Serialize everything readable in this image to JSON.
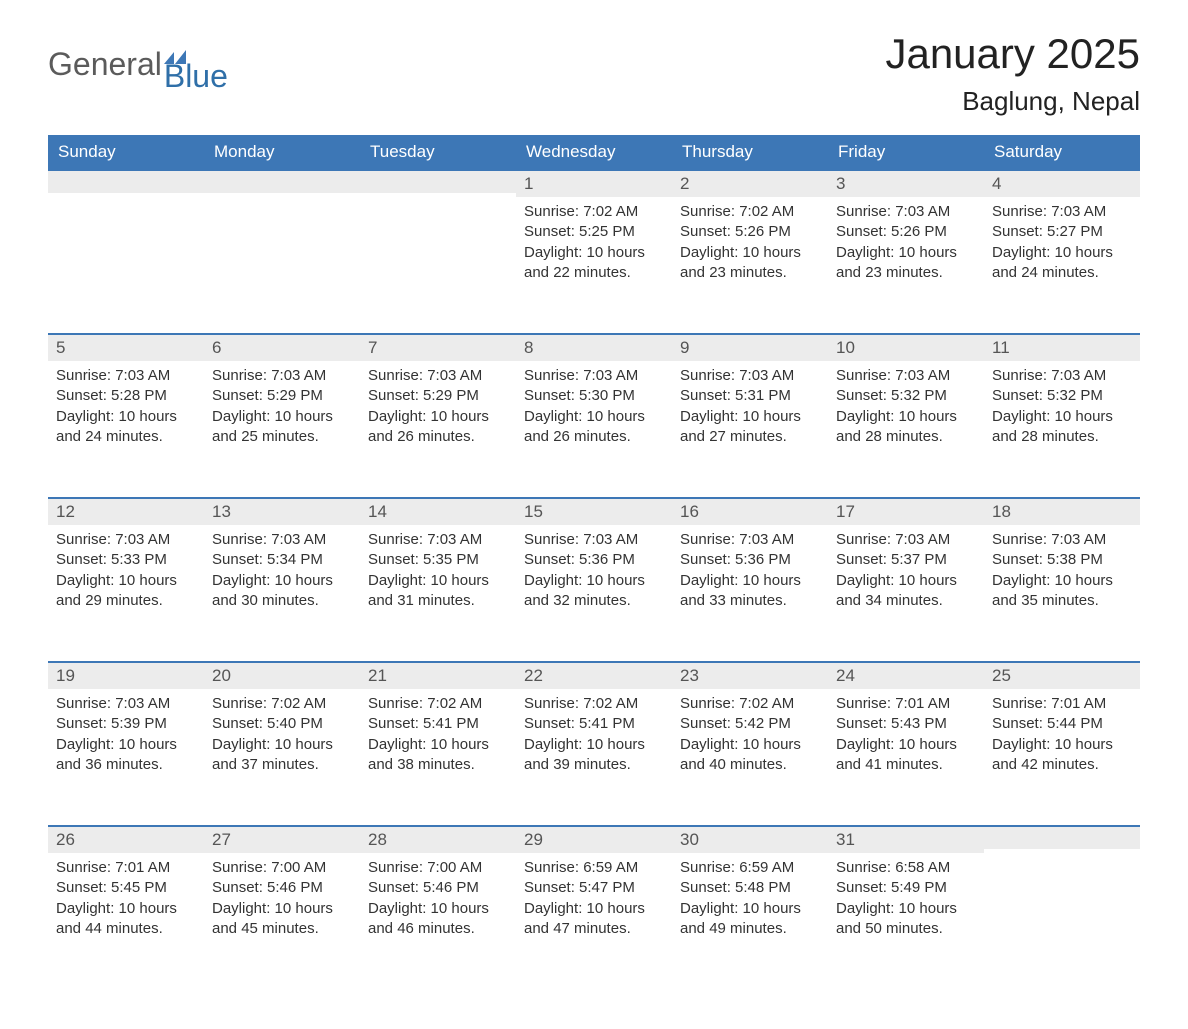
{
  "logo": {
    "general": "General",
    "blue": "Blue",
    "flag_color": "#3d77b6"
  },
  "title": "January 2025",
  "location": "Baglung, Nepal",
  "header_bg": "#3d77b6",
  "header_fg": "#ffffff",
  "daynum_bg": "#ececec",
  "daynum_border": "#3d77b6",
  "text_color": "#333333",
  "weekdays": [
    "Sunday",
    "Monday",
    "Tuesday",
    "Wednesday",
    "Thursday",
    "Friday",
    "Saturday"
  ],
  "weeks": [
    [
      null,
      null,
      null,
      {
        "n": "1",
        "sr": "7:02 AM",
        "ss": "5:25 PM",
        "dh": "10",
        "dm": "22"
      },
      {
        "n": "2",
        "sr": "7:02 AM",
        "ss": "5:26 PM",
        "dh": "10",
        "dm": "23"
      },
      {
        "n": "3",
        "sr": "7:03 AM",
        "ss": "5:26 PM",
        "dh": "10",
        "dm": "23"
      },
      {
        "n": "4",
        "sr": "7:03 AM",
        "ss": "5:27 PM",
        "dh": "10",
        "dm": "24"
      }
    ],
    [
      {
        "n": "5",
        "sr": "7:03 AM",
        "ss": "5:28 PM",
        "dh": "10",
        "dm": "24"
      },
      {
        "n": "6",
        "sr": "7:03 AM",
        "ss": "5:29 PM",
        "dh": "10",
        "dm": "25"
      },
      {
        "n": "7",
        "sr": "7:03 AM",
        "ss": "5:29 PM",
        "dh": "10",
        "dm": "26"
      },
      {
        "n": "8",
        "sr": "7:03 AM",
        "ss": "5:30 PM",
        "dh": "10",
        "dm": "26"
      },
      {
        "n": "9",
        "sr": "7:03 AM",
        "ss": "5:31 PM",
        "dh": "10",
        "dm": "27"
      },
      {
        "n": "10",
        "sr": "7:03 AM",
        "ss": "5:32 PM",
        "dh": "10",
        "dm": "28"
      },
      {
        "n": "11",
        "sr": "7:03 AM",
        "ss": "5:32 PM",
        "dh": "10",
        "dm": "28"
      }
    ],
    [
      {
        "n": "12",
        "sr": "7:03 AM",
        "ss": "5:33 PM",
        "dh": "10",
        "dm": "29"
      },
      {
        "n": "13",
        "sr": "7:03 AM",
        "ss": "5:34 PM",
        "dh": "10",
        "dm": "30"
      },
      {
        "n": "14",
        "sr": "7:03 AM",
        "ss": "5:35 PM",
        "dh": "10",
        "dm": "31"
      },
      {
        "n": "15",
        "sr": "7:03 AM",
        "ss": "5:36 PM",
        "dh": "10",
        "dm": "32"
      },
      {
        "n": "16",
        "sr": "7:03 AM",
        "ss": "5:36 PM",
        "dh": "10",
        "dm": "33"
      },
      {
        "n": "17",
        "sr": "7:03 AM",
        "ss": "5:37 PM",
        "dh": "10",
        "dm": "34"
      },
      {
        "n": "18",
        "sr": "7:03 AM",
        "ss": "5:38 PM",
        "dh": "10",
        "dm": "35"
      }
    ],
    [
      {
        "n": "19",
        "sr": "7:03 AM",
        "ss": "5:39 PM",
        "dh": "10",
        "dm": "36"
      },
      {
        "n": "20",
        "sr": "7:02 AM",
        "ss": "5:40 PM",
        "dh": "10",
        "dm": "37"
      },
      {
        "n": "21",
        "sr": "7:02 AM",
        "ss": "5:41 PM",
        "dh": "10",
        "dm": "38"
      },
      {
        "n": "22",
        "sr": "7:02 AM",
        "ss": "5:41 PM",
        "dh": "10",
        "dm": "39"
      },
      {
        "n": "23",
        "sr": "7:02 AM",
        "ss": "5:42 PM",
        "dh": "10",
        "dm": "40"
      },
      {
        "n": "24",
        "sr": "7:01 AM",
        "ss": "5:43 PM",
        "dh": "10",
        "dm": "41"
      },
      {
        "n": "25",
        "sr": "7:01 AM",
        "ss": "5:44 PM",
        "dh": "10",
        "dm": "42"
      }
    ],
    [
      {
        "n": "26",
        "sr": "7:01 AM",
        "ss": "5:45 PM",
        "dh": "10",
        "dm": "44"
      },
      {
        "n": "27",
        "sr": "7:00 AM",
        "ss": "5:46 PM",
        "dh": "10",
        "dm": "45"
      },
      {
        "n": "28",
        "sr": "7:00 AM",
        "ss": "5:46 PM",
        "dh": "10",
        "dm": "46"
      },
      {
        "n": "29",
        "sr": "6:59 AM",
        "ss": "5:47 PM",
        "dh": "10",
        "dm": "47"
      },
      {
        "n": "30",
        "sr": "6:59 AM",
        "ss": "5:48 PM",
        "dh": "10",
        "dm": "49"
      },
      {
        "n": "31",
        "sr": "6:58 AM",
        "ss": "5:49 PM",
        "dh": "10",
        "dm": "50"
      },
      null
    ]
  ],
  "labels": {
    "sunrise": "Sunrise: ",
    "sunset": "Sunset: ",
    "daylight": "Daylight: ",
    "hours_and": " hours and ",
    "minutes": " minutes."
  }
}
